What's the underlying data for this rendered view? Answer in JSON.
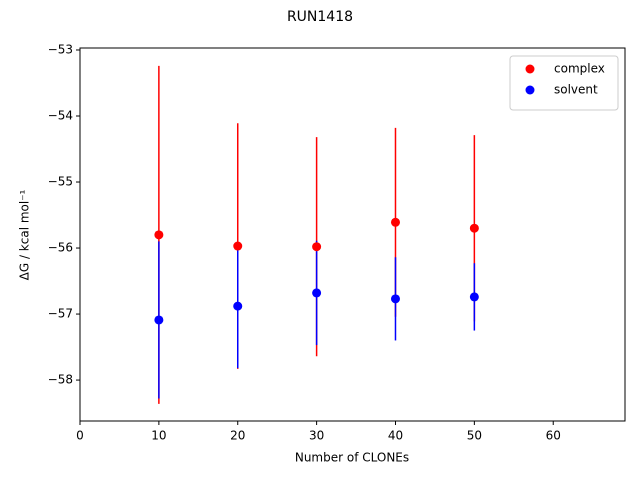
{
  "chart_data": {
    "type": "scatter",
    "title": "RUN1418",
    "x_label": "Number of CLONEs",
    "y_label": "ΔG / kcal mol⁻¹",
    "x": [
      10,
      20,
      30,
      40,
      50
    ],
    "series": [
      {
        "name": "complex",
        "color": "#ff0000",
        "values": [
          -55.8,
          -55.97,
          -55.98,
          -55.61,
          -55.7
        ],
        "errors": [
          2.56,
          1.86,
          1.66,
          1.43,
          1.41
        ]
      },
      {
        "name": "solvent",
        "color": "#0000ff",
        "values": [
          -57.09,
          -56.88,
          -56.68,
          -56.77,
          -56.74
        ],
        "errors": [
          1.19,
          0.94,
          0.79,
          0.63,
          0.51
        ]
      }
    ],
    "xlim": [
      0,
      69.1
    ],
    "ylim": [
      -58.62,
      -52.97
    ],
    "xticks": [
      0,
      10,
      20,
      30,
      40,
      50,
      60
    ],
    "yticks": [
      {
        "value": -58,
        "label": "−58"
      },
      {
        "value": -57,
        "label": "−57"
      },
      {
        "value": -56,
        "label": "−56"
      },
      {
        "value": -55,
        "label": "−55"
      },
      {
        "value": -54,
        "label": "−54"
      },
      {
        "value": -53,
        "label": "−53"
      }
    ],
    "legend": "upper right",
    "grid": false
  }
}
